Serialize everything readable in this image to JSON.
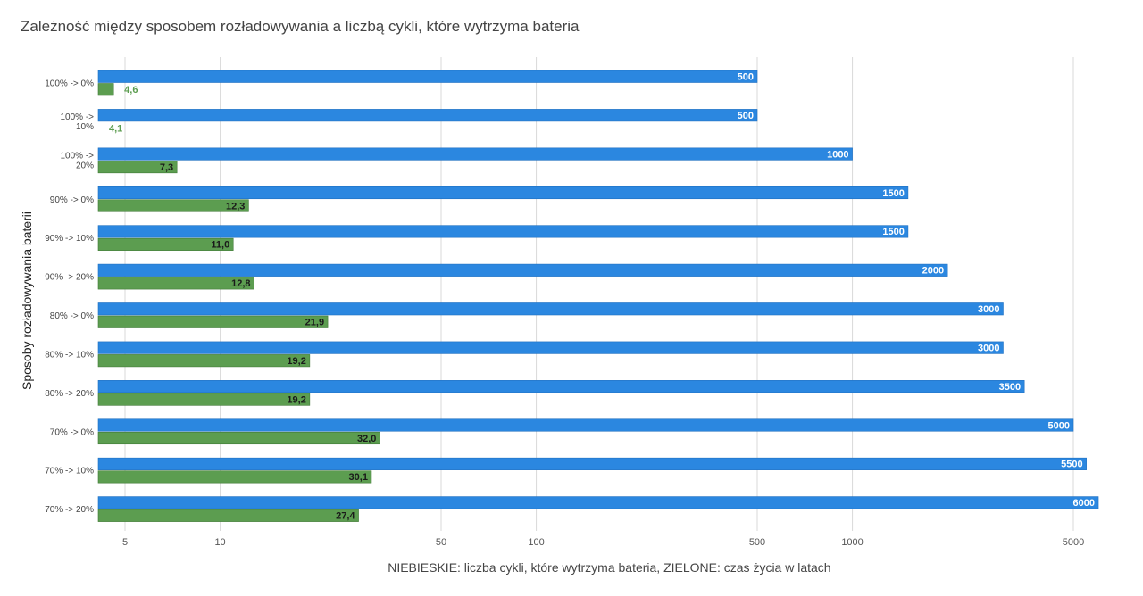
{
  "chart_data": {
    "type": "bar",
    "orientation": "horizontal",
    "title": "Zależność między sposobem rozładowywania a liczbą cykli, które wytrzyma bateria",
    "xlabel": "NIEBIESKIE: liczba cykli, które wytrzyma bateria, ZIELONE: czas życia w latach",
    "ylabel": "Sposoby rozładowywania baterii",
    "x_scale": "log",
    "xlim": [
      4.2,
      5800
    ],
    "x_ticks": [
      5,
      10,
      50,
      100,
      500,
      1000,
      5000
    ],
    "grid": true,
    "categories": [
      "100% -> 0%",
      "100% -> 10%",
      "100% -> 20%",
      "90% -> 0%",
      "90% -> 10%",
      "90% -> 20%",
      "80% -> 0%",
      "80% -> 10%",
      "80% -> 20%",
      "70% -> 0%",
      "70% -> 10%",
      "70% -> 20%"
    ],
    "series": [
      {
        "color": "#2b87e0",
        "values": [
          500,
          500,
          1000,
          1500,
          1500,
          2000,
          3000,
          3000,
          3500,
          5000,
          5500,
          6000
        ],
        "labels": [
          "500",
          "500",
          "1000",
          "1500",
          "1500",
          "2000",
          "3000",
          "3000",
          "3500",
          "5000",
          "5500",
          "6000"
        ]
      },
      {
        "color": "#5c9d50",
        "values": [
          4.6,
          4.1,
          7.3,
          12.3,
          11.0,
          12.8,
          21.9,
          19.2,
          19.2,
          32.0,
          30.1,
          27.4
        ],
        "labels": [
          "4,6",
          "4,1",
          "7,3",
          "12,3",
          "11,0",
          "12,8",
          "21,9",
          "19,2",
          "19,2",
          "32,0",
          "30,1",
          "27,4"
        ]
      }
    ]
  }
}
